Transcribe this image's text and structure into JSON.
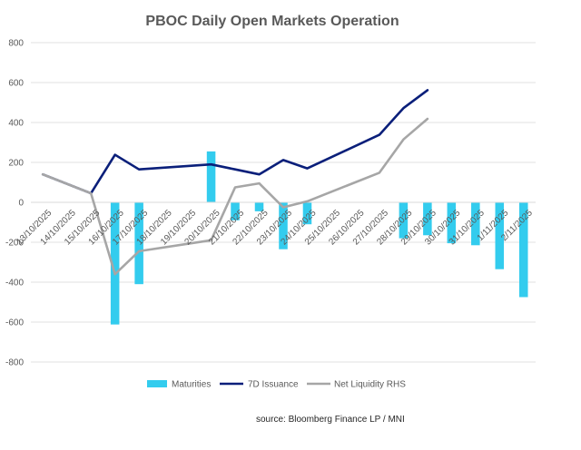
{
  "chart_data": {
    "type": "bar",
    "title": "PBOC Daily Open Markets Operation",
    "categories": [
      "13/10/2025",
      "14/10/2025",
      "15/10/2025",
      "16/10/2025",
      "17/10/2025",
      "18/10/2025",
      "19/10/2025",
      "20/10/2025",
      "21/10/2025",
      "22/10/2025",
      "23/10/2025",
      "24/10/2025",
      "25/10/2025",
      "26/10/2025",
      "27/10/2025",
      "28/10/2025",
      "29/10/2025",
      "30/10/2025",
      "31/10/2025",
      "1/11/2025",
      "2/11/2025"
    ],
    "ylim": [
      -800,
      800
    ],
    "yticks": [
      -800,
      -600,
      -400,
      -200,
      0,
      200,
      400,
      600,
      800
    ],
    "grid": true,
    "legend_position": "bottom",
    "series": [
      {
        "name": "Maturities",
        "kind": "bar",
        "color": "#33CCEE",
        "values": [
          null,
          null,
          null,
          -612,
          -410,
          null,
          null,
          255,
          -90,
          -45,
          -235,
          -110,
          null,
          null,
          null,
          -180,
          -165,
          -205,
          -215,
          -335,
          -475
        ]
      },
      {
        "name": "7D Issuance",
        "kind": "line",
        "color": "#0A1F7A",
        "values": [
          140,
          null,
          45,
          238,
          165,
          null,
          null,
          190,
          165,
          140,
          212,
          170,
          null,
          null,
          338,
          472,
          562,
          null,
          null,
          null,
          null
        ]
      },
      {
        "name": "Net Liquidity RHS",
        "kind": "line",
        "color": "#A6A6A6",
        "values": [
          140,
          null,
          45,
          -360,
          -245,
          null,
          null,
          -190,
          75,
          95,
          -25,
          5,
          null,
          null,
          148,
          315,
          418,
          null,
          null,
          null,
          null
        ]
      }
    ],
    "line_points": {
      "7D Issuance": [
        [
          0,
          140
        ],
        [
          2,
          45
        ],
        [
          3,
          238
        ],
        [
          4,
          165
        ],
        [
          7,
          190
        ],
        [
          8,
          165
        ],
        [
          9,
          140
        ],
        [
          10,
          212
        ],
        [
          11,
          170
        ],
        [
          14,
          338
        ],
        [
          15,
          472
        ],
        [
          16,
          562
        ]
      ],
      "Net Liquidity RHS": [
        [
          0,
          140
        ],
        [
          2,
          45
        ],
        [
          3,
          -360
        ],
        [
          4,
          -245
        ],
        [
          7,
          -190
        ],
        [
          8,
          75
        ],
        [
          9,
          95
        ],
        [
          10,
          -25
        ],
        [
          11,
          5
        ],
        [
          14,
          148
        ],
        [
          15,
          315
        ],
        [
          16,
          418
        ]
      ]
    }
  },
  "source": "source:  Bloomberg Finance LP / MNI"
}
